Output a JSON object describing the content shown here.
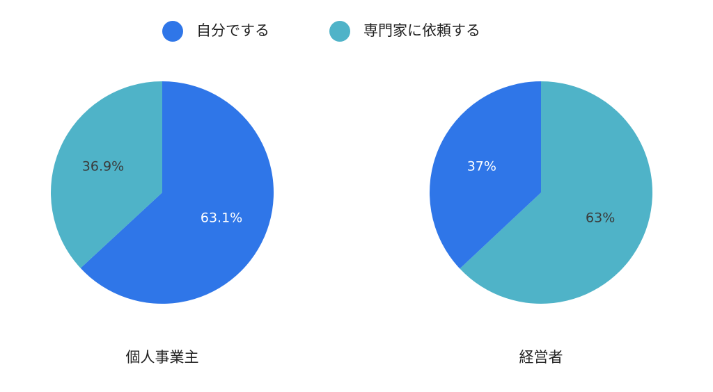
{
  "chart_data": [
    {
      "type": "pie",
      "title": "個人事業主",
      "categories": [
        "自分でする",
        "専門家に依頼する"
      ],
      "values": [
        63.1,
        36.9
      ],
      "value_labels": [
        "63.1%",
        "36.9%"
      ],
      "colors": [
        "#2f76e8",
        "#4fb3c8"
      ],
      "label_colors": [
        "#ffffff",
        "#3a3a3a"
      ]
    },
    {
      "type": "pie",
      "title": "経営者",
      "categories": [
        "専門家に依頼する",
        "自分でする"
      ],
      "values": [
        63,
        37
      ],
      "value_labels": [
        "63%",
        "37%"
      ],
      "colors": [
        "#4fb3c8",
        "#2f76e8"
      ],
      "label_colors": [
        "#3a3a3a",
        "#ffffff"
      ]
    }
  ]
}
